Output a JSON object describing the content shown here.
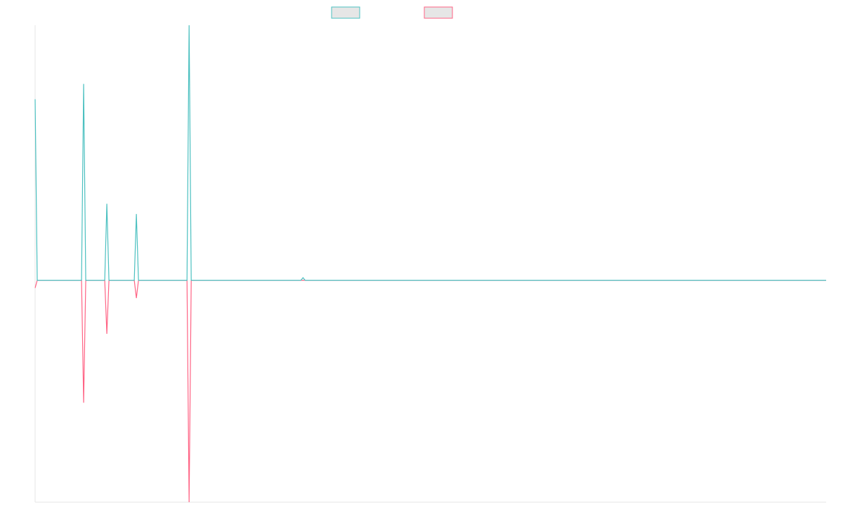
{
  "chart_data": {
    "type": "line",
    "x": [
      0,
      1,
      22,
      23,
      24,
      33,
      34,
      35,
      47,
      48,
      49,
      72,
      73,
      74,
      126,
      127,
      128,
      375
    ],
    "series": [
      {
        "color": "#ff6384",
        "values": [
          -3,
          0,
          0,
          -48,
          0,
          0,
          -21,
          0,
          0,
          -7,
          0,
          0,
          -87,
          0,
          0,
          0,
          0,
          0
        ]
      },
      {
        "color": "#4bc0c0",
        "values": [
          71,
          0,
          0,
          77,
          0,
          0,
          30,
          0,
          0,
          26,
          0,
          0,
          100,
          0,
          0,
          1,
          0,
          0
        ]
      }
    ],
    "legend_order": [
      1,
      0
    ],
    "xlim": [
      0,
      375
    ],
    "ylim": [
      -87,
      100
    ]
  }
}
